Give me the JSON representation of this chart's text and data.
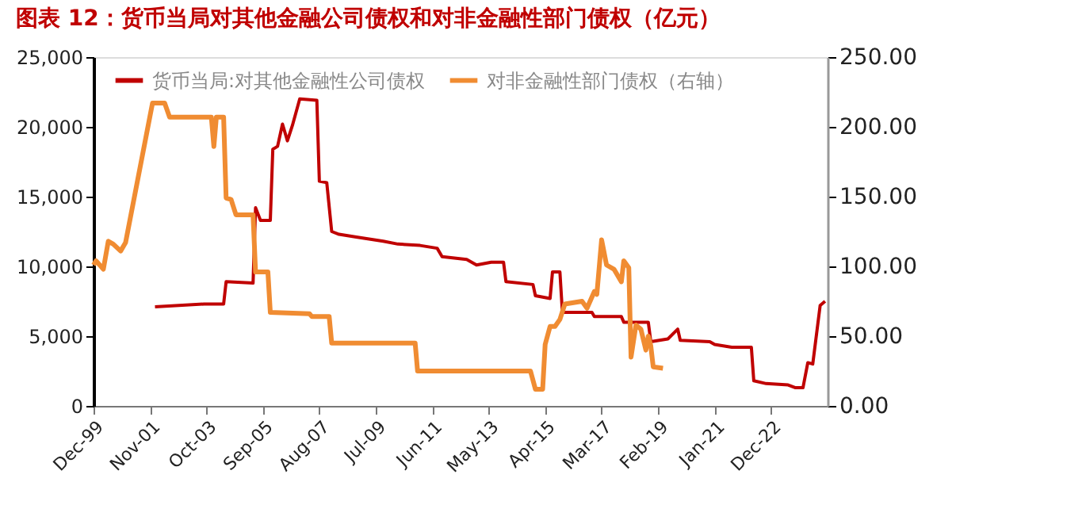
{
  "chart_data": {
    "type": "line",
    "title": "图表 12：货币当局对其他金融公司债权和对非金融性部门债权（亿元）",
    "series": [
      {
        "name": "货币当局:对其他金融性公司债权",
        "color": "#c00000",
        "axis": "y",
        "x": [
          "2002-01",
          "2003-09",
          "2004-05",
          "2004-06",
          "2005-05",
          "2005-06",
          "2005-08",
          "2005-12",
          "2006-01",
          "2006-03",
          "2006-05",
          "2006-07",
          "2006-09",
          "2006-12",
          "2007-07",
          "2007-08",
          "2007-11",
          "2008-01",
          "2008-04",
          "2008-11",
          "2009-10",
          "2010-04",
          "2011-01",
          "2011-08",
          "2011-10",
          "2012-08",
          "2012-12",
          "2013-06",
          "2013-11",
          "2013-12",
          "2014-11",
          "2014-12",
          "2015-06",
          "2015-07",
          "2015-10",
          "2015-11",
          "2016-11",
          "2016-12",
          "2017-11",
          "2017-12",
          "2018-10",
          "2018-11",
          "2019-06",
          "2019-10",
          "2019-11",
          "2020-11",
          "2021-01",
          "2021-08",
          "2022-04",
          "2022-05",
          "2022-10",
          "2023-07",
          "2023-10",
          "2024-01",
          "2024-03",
          "2024-05",
          "2024-08",
          "2024-10"
        ],
        "values": [
          7100,
          7300,
          7300,
          8900,
          8800,
          14200,
          13300,
          13300,
          18400,
          18600,
          20200,
          19000,
          20100,
          22000,
          21900,
          16100,
          16000,
          12500,
          12300,
          12100,
          11800,
          11600,
          11500,
          11300,
          10700,
          10500,
          10100,
          10300,
          10300,
          8900,
          8700,
          7900,
          7700,
          9600,
          9600,
          6700,
          6700,
          6400,
          6400,
          6000,
          6000,
          4600,
          4800,
          5500,
          4700,
          4600,
          4400,
          4200,
          4200,
          1800,
          1600,
          1500,
          1300,
          1300,
          3100,
          3000,
          7200,
          7500
        ]
      },
      {
        "name": "对非金融性部门债权（右轴）",
        "color": "#f08c32",
        "axis": "y2",
        "x": [
          "1999-12",
          "2000-01",
          "2000-04",
          "2000-06",
          "2000-08",
          "2000-11",
          "2001-01",
          "2001-12",
          "2002-05",
          "2002-07",
          "2003-12",
          "2004-01",
          "2004-02",
          "2004-05",
          "2004-06",
          "2004-08",
          "2004-10",
          "2005-05",
          "2005-06",
          "2005-11",
          "2005-12",
          "2007-04",
          "2007-05",
          "2007-12",
          "2008-01",
          "2010-11",
          "2010-12",
          "2014-10",
          "2014-12",
          "2015-03",
          "2015-04",
          "2015-06",
          "2015-08",
          "2015-10",
          "2015-12",
          "2016-07",
          "2016-09",
          "2016-12",
          "2017-01",
          "2017-03",
          "2017-05",
          "2017-08",
          "2017-11",
          "2017-12",
          "2018-02",
          "2018-03",
          "2018-05",
          "2018-07",
          "2018-09",
          "2018-10",
          "2018-11",
          "2018-12",
          "2019-04"
        ],
        "values": [
          101,
          104,
          98,
          118,
          116,
          111,
          117,
          217,
          217,
          207,
          207,
          186,
          207,
          207,
          149,
          148,
          137,
          137,
          96,
          96,
          67,
          66,
          64,
          64,
          45,
          45,
          25,
          25,
          12,
          12,
          44,
          57,
          57,
          62,
          73,
          75,
          70,
          82,
          80,
          119,
          101,
          98,
          89,
          104,
          99,
          35,
          58,
          55,
          40,
          50,
          43,
          28,
          27
        ]
      }
    ],
    "xlim": [
      "1999-12",
      "2024-11"
    ],
    "xticks": [
      {
        "value": "1999-12",
        "label": "Dec-99"
      },
      {
        "value": "2001-11",
        "label": "Nov-01"
      },
      {
        "value": "2003-10",
        "label": "Oct-03"
      },
      {
        "value": "2005-09",
        "label": "Sep-05"
      },
      {
        "value": "2007-08",
        "label": "Aug-07"
      },
      {
        "value": "2009-07",
        "label": "Jul-09"
      },
      {
        "value": "2011-06",
        "label": "Jun-11"
      },
      {
        "value": "2013-05",
        "label": "May-13"
      },
      {
        "value": "2015-04",
        "label": "Apr-15"
      },
      {
        "value": "2017-03",
        "label": "Mar-17"
      },
      {
        "value": "2019-02",
        "label": "Feb-19"
      },
      {
        "value": "2021-01",
        "label": "Jan-21"
      },
      {
        "value": "2022-12",
        "label": "Dec-22"
      }
    ],
    "ylim": [
      0,
      25000
    ],
    "yticks": [
      0,
      {
        "value": 5000,
        "label": "5,000"
      },
      {
        "value": 10000,
        "label": "10,000"
      },
      {
        "value": 15000,
        "label": "15,000"
      },
      {
        "value": 20000,
        "label": "20,000"
      },
      {
        "value": 25000,
        "label": "25,000"
      }
    ],
    "y2lim": [
      0,
      250
    ],
    "y2ticks": [
      {
        "value": 0,
        "label": "0.00"
      },
      {
        "value": 50,
        "label": "50.00"
      },
      {
        "value": 100,
        "label": "100.00"
      },
      {
        "value": 150,
        "label": "150.00"
      },
      {
        "value": 200,
        "label": "200.00"
      },
      {
        "value": 250,
        "label": "250.00"
      }
    ],
    "grid": false,
    "legend": "top",
    "marker": "none",
    "line_style": "solid"
  }
}
